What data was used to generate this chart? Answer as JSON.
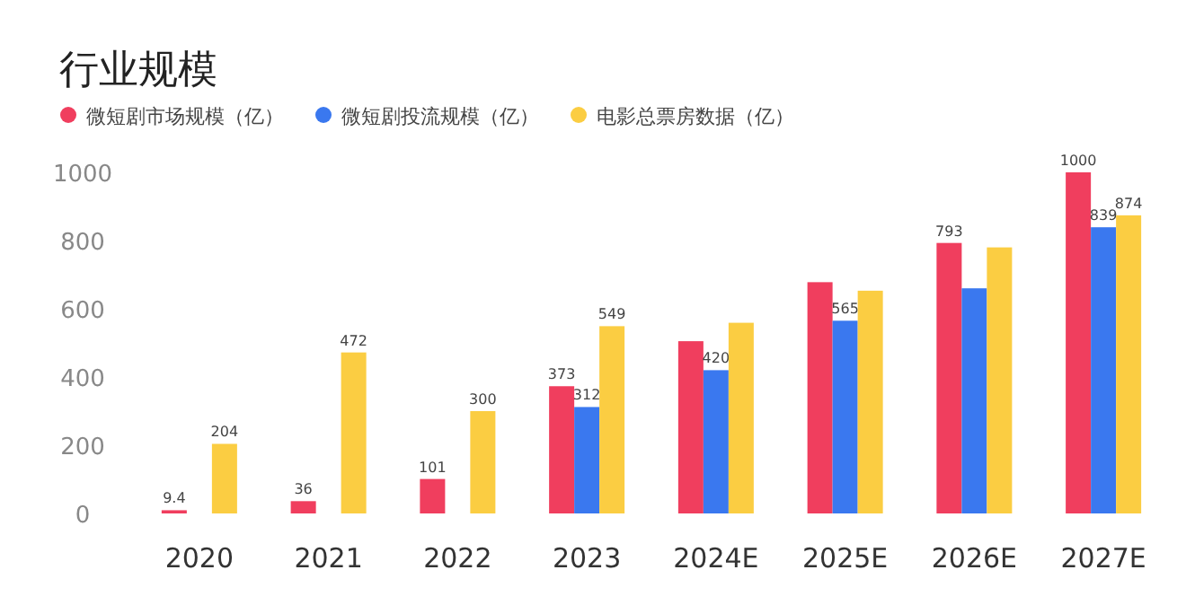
{
  "chart_data": {
    "type": "bar",
    "title": "行业规模",
    "categories": [
      "2020",
      "2021",
      "2022",
      "2023",
      "2024E",
      "2025E",
      "2026E",
      "2027E"
    ],
    "series": [
      {
        "name": "微短剧市场规模（亿）",
        "color": "#f03e5e",
        "values": [
          9.4,
          36,
          101,
          373,
          505,
          678,
          793,
          1000
        ],
        "value_labels": [
          "9.4",
          "36",
          "101",
          "373",
          null,
          null,
          "793",
          "1000"
        ]
      },
      {
        "name": "微短剧投流规模（亿）",
        "color": "#3a78ef",
        "values": [
          null,
          null,
          null,
          312,
          420,
          565,
          660,
          839
        ],
        "value_labels": [
          null,
          null,
          null,
          "312",
          "420",
          "565",
          null,
          "839"
        ]
      },
      {
        "name": "电影总票房数据（亿）",
        "color": "#fbcd42",
        "values": [
          204,
          472,
          300,
          549,
          559,
          653,
          780,
          874
        ],
        "value_labels": [
          "204",
          "472",
          "300",
          "549",
          null,
          null,
          null,
          "874"
        ]
      }
    ],
    "ylim": [
      0,
      1000
    ],
    "yticks": [
      0,
      200,
      400,
      600,
      800,
      1000
    ],
    "grid": false,
    "legend": "top left"
  }
}
